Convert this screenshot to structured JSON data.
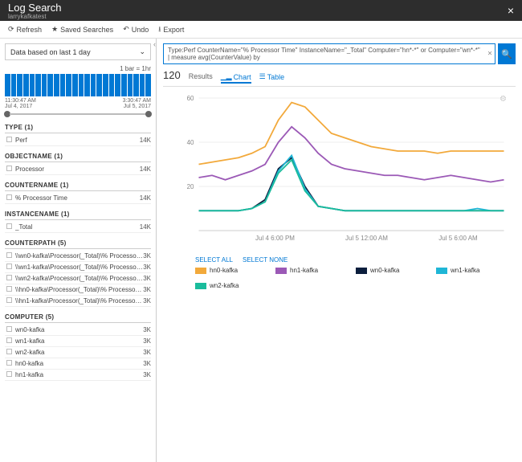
{
  "header": {
    "title": "Log Search",
    "subtitle": "larrykafkatest"
  },
  "toolbar": {
    "refresh": "Refresh",
    "saved": "Saved Searches",
    "undo": "Undo",
    "export": "Export"
  },
  "sidebar": {
    "time_label": "Data based on last 1 day",
    "bar_legend": "1 bar = 1hr",
    "hist_time_left_top": "11:30:47 AM",
    "hist_time_left_bot": "Jul 4, 2017",
    "hist_time_right_top": "3:30:47 AM",
    "hist_time_right_bot": "Jul 5, 2017",
    "facets": [
      {
        "title": "TYPE  (1)",
        "rows": [
          {
            "label": "Perf",
            "count": "14K"
          }
        ]
      },
      {
        "title": "OBJECTNAME  (1)",
        "rows": [
          {
            "label": "Processor",
            "count": "14K"
          }
        ]
      },
      {
        "title": "COUNTERNAME  (1)",
        "rows": [
          {
            "label": "% Processor Time",
            "count": "14K"
          }
        ]
      },
      {
        "title": "INSTANCENAME  (1)",
        "rows": [
          {
            "label": "_Total",
            "count": "14K"
          }
        ]
      },
      {
        "title": "COUNTERPATH  (5)",
        "rows": [
          {
            "label": "\\\\wn0-kafka\\Processor(_Total)\\% Processor Time",
            "count": "3K"
          },
          {
            "label": "\\\\wn1-kafka\\Processor(_Total)\\% Processor Time",
            "count": "3K"
          },
          {
            "label": "\\\\wn2-kafka\\Processor(_Total)\\% Processor Time",
            "count": "3K"
          },
          {
            "label": "\\\\hn0-kafka\\Processor(_Total)\\% Processor Time",
            "count": "3K"
          },
          {
            "label": "\\\\hn1-kafka\\Processor(_Total)\\% Processor Time",
            "count": "3K"
          }
        ]
      },
      {
        "title": "COMPUTER  (5)",
        "rows": [
          {
            "label": "wn0-kafka",
            "count": "3K"
          },
          {
            "label": "wn1-kafka",
            "count": "3K"
          },
          {
            "label": "wn2-kafka",
            "count": "3K"
          },
          {
            "label": "hn0-kafka",
            "count": "3K"
          },
          {
            "label": "hn1-kafka",
            "count": "3K"
          }
        ]
      }
    ]
  },
  "query": "Type:Perf CounterName=\"% Processor Time\" InstanceName=\"_Total\" Computer=\"hn*-*\" or Computer=\"wn*-*\" | measure avg(CounterValue) by",
  "results": {
    "count": "120",
    "label": "Results",
    "chart_tab": "Chart",
    "table_tab": "Table"
  },
  "legend_actions": {
    "all": "SELECT ALL",
    "none": "SELECT NONE"
  },
  "chart": {
    "ylim": [
      0,
      60
    ],
    "yticks": [
      20,
      40,
      60
    ],
    "xlabels": [
      "Jul 4 6:00 PM",
      "Jul 5 12:00 AM",
      "Jul 5 6:00 AM"
    ],
    "colors": {
      "hn0": "#f2a93b",
      "hn1": "#9b59b6",
      "wn0": "#0b1e3d",
      "wn1": "#1fb6d6",
      "wn2": "#1abc9c"
    },
    "series": {
      "hn0": [
        30,
        31,
        32,
        33,
        35,
        38,
        50,
        58,
        56,
        50,
        44,
        42,
        40,
        38,
        37,
        36,
        36,
        36,
        35,
        36,
        36,
        36,
        36,
        36
      ],
      "hn1": [
        24,
        25,
        23,
        25,
        27,
        30,
        40,
        47,
        42,
        35,
        30,
        28,
        27,
        26,
        25,
        25,
        24,
        23,
        24,
        25,
        24,
        23,
        22,
        23
      ],
      "wn0": [
        9,
        9,
        9,
        9,
        10,
        14,
        28,
        33,
        20,
        11,
        10,
        9,
        9,
        9,
        9,
        9,
        9,
        9,
        9,
        9,
        9,
        9,
        9,
        9
      ],
      "wn1": [
        9,
        9,
        9,
        9,
        10,
        13,
        27,
        34,
        19,
        11,
        10,
        9,
        9,
        9,
        9,
        9,
        9,
        9,
        9,
        9,
        9,
        10,
        9,
        9
      ],
      "wn2": [
        9,
        9,
        9,
        9,
        10,
        13,
        26,
        32,
        18,
        11,
        10,
        9,
        9,
        9,
        9,
        9,
        9,
        9,
        9,
        9,
        9,
        9,
        9,
        9
      ]
    },
    "legend": [
      {
        "key": "hn0",
        "label": "hn0-kafka"
      },
      {
        "key": "hn1",
        "label": "hn1-kafka"
      },
      {
        "key": "wn0",
        "label": "wn0-kafka"
      },
      {
        "key": "wn1",
        "label": "wn1-kafka"
      },
      {
        "key": "wn2",
        "label": "wn2-kafka"
      }
    ]
  }
}
